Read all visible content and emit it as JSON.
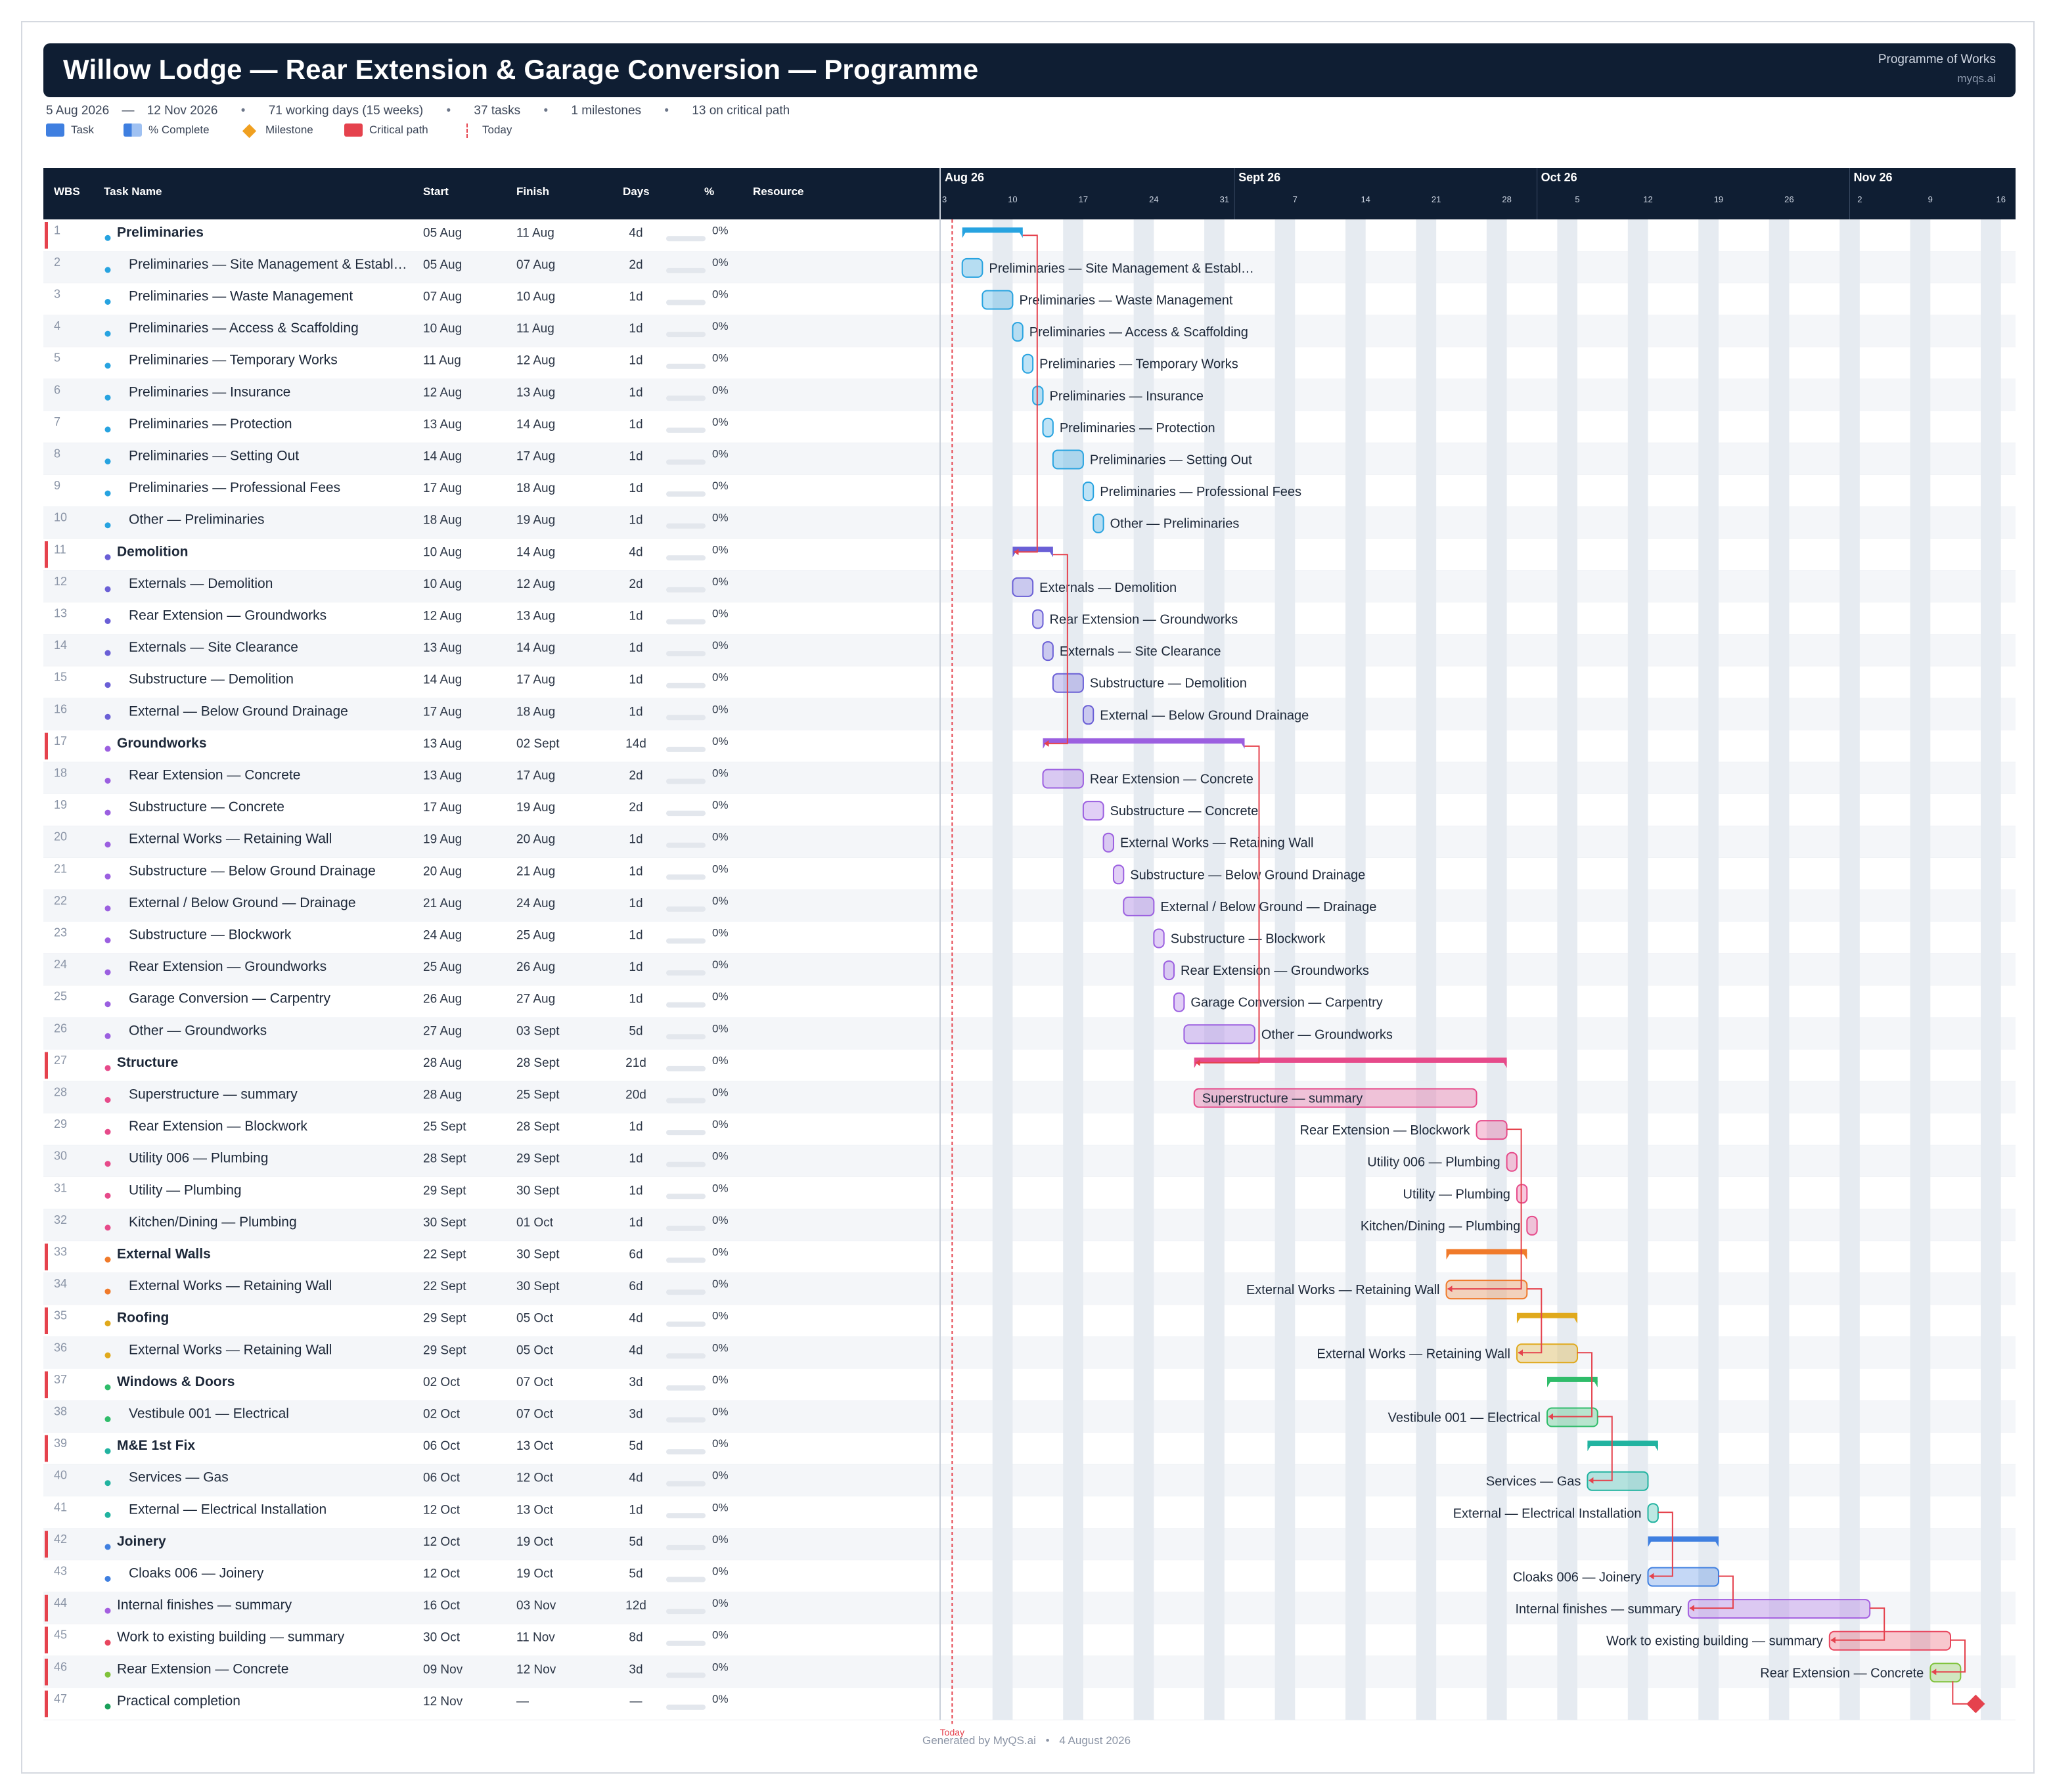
{
  "header": {
    "title": "Willow Lodge — Rear Extension & Garage Conversion — Programme",
    "right_title": "Programme of Works",
    "right_sub": "myqs.ai"
  },
  "stats": {
    "start": "5 Aug 2026",
    "dash": "—",
    "finish": "12 Nov 2026",
    "working_days": "71 working days (15 weeks)",
    "tasks": "37 tasks",
    "milestones": "1 milestones",
    "critical": "13 on critical path"
  },
  "legend": {
    "task": "Task",
    "complete": "% Complete",
    "milestone": "Milestone",
    "critical": "Critical path",
    "today": "Today"
  },
  "columns": {
    "wbs": "WBS",
    "name": "Task Name",
    "start": "Start",
    "finish": "Finish",
    "days": "Days",
    "pct": "%",
    "resource": "Resource"
  },
  "timeline": {
    "months": [
      "Aug 26",
      "Sept 26",
      "Oct 26",
      "Nov 26"
    ],
    "week_ticks": [
      "3",
      "10",
      "17",
      "24",
      "31",
      "7",
      "14",
      "21",
      "28",
      "5",
      "12",
      "19",
      "26",
      "2",
      "9",
      "16"
    ],
    "today_label": "Today",
    "today": "2026-08-04"
  },
  "colors": {
    "header_bg": "#0f1e33",
    "critical": "#e5424d",
    "milestone": "#e5424d",
    "today_line": "#e5424d",
    "weekend": "#e6ebf1"
  },
  "chart_data": {
    "type": "gantt",
    "x_unit": "date",
    "xlim": [
      "2026-08-03",
      "2026-11-17"
    ],
    "groups": {
      "prelim": "#27a3e0",
      "demo": "#6a5fd6",
      "ground": "#9b5fe0",
      "struct": "#e64a8a",
      "walls": "#f07a2a",
      "roof": "#e0a91c",
      "windows": "#2fbc6a",
      "me": "#21b3a0",
      "joinery": "#3f7fe0",
      "internal": "#a45fe0",
      "existing": "#e8455e",
      "rear": "#7fc23a",
      "complete": "#1aa05a"
    },
    "tasks": [
      {
        "wbs": "1",
        "name": "Preliminaries",
        "start_label": "05 Aug",
        "finish_label": "11 Aug",
        "days": "4d",
        "pct": "0%",
        "s": "2026-08-05",
        "f": "2026-08-11",
        "type": "summary",
        "group": "prelim",
        "crit": true,
        "label": "right"
      },
      {
        "wbs": "2",
        "name": "Preliminaries — Site Management & Establ…",
        "start_label": "05 Aug",
        "finish_label": "07 Aug",
        "days": "2d",
        "pct": "0%",
        "s": "2026-08-05",
        "f": "2026-08-07",
        "type": "task",
        "group": "prelim",
        "crit": false,
        "label": "right"
      },
      {
        "wbs": "3",
        "name": "Preliminaries — Waste Management",
        "start_label": "07 Aug",
        "finish_label": "10 Aug",
        "days": "1d",
        "pct": "0%",
        "s": "2026-08-07",
        "f": "2026-08-10",
        "type": "task",
        "group": "prelim",
        "crit": false,
        "label": "right"
      },
      {
        "wbs": "4",
        "name": "Preliminaries — Access & Scaffolding",
        "start_label": "10 Aug",
        "finish_label": "11 Aug",
        "days": "1d",
        "pct": "0%",
        "s": "2026-08-10",
        "f": "2026-08-11",
        "type": "task",
        "group": "prelim",
        "crit": false,
        "label": "right"
      },
      {
        "wbs": "5",
        "name": "Preliminaries — Temporary Works",
        "start_label": "11 Aug",
        "finish_label": "12 Aug",
        "days": "1d",
        "pct": "0%",
        "s": "2026-08-11",
        "f": "2026-08-12",
        "type": "task",
        "group": "prelim",
        "crit": false,
        "label": "right"
      },
      {
        "wbs": "6",
        "name": "Preliminaries — Insurance",
        "start_label": "12 Aug",
        "finish_label": "13 Aug",
        "days": "1d",
        "pct": "0%",
        "s": "2026-08-12",
        "f": "2026-08-13",
        "type": "task",
        "group": "prelim",
        "crit": false,
        "label": "right"
      },
      {
        "wbs": "7",
        "name": "Preliminaries — Protection",
        "start_label": "13 Aug",
        "finish_label": "14 Aug",
        "days": "1d",
        "pct": "0%",
        "s": "2026-08-13",
        "f": "2026-08-14",
        "type": "task",
        "group": "prelim",
        "crit": false,
        "label": "right"
      },
      {
        "wbs": "8",
        "name": "Preliminaries — Setting Out",
        "start_label": "14 Aug",
        "finish_label": "17 Aug",
        "days": "1d",
        "pct": "0%",
        "s": "2026-08-14",
        "f": "2026-08-17",
        "type": "task",
        "group": "prelim",
        "crit": false,
        "label": "right"
      },
      {
        "wbs": "9",
        "name": "Preliminaries — Professional Fees",
        "start_label": "17 Aug",
        "finish_label": "18 Aug",
        "days": "1d",
        "pct": "0%",
        "s": "2026-08-17",
        "f": "2026-08-18",
        "type": "task",
        "group": "prelim",
        "crit": false,
        "label": "right"
      },
      {
        "wbs": "10",
        "name": "Other — Preliminaries",
        "start_label": "18 Aug",
        "finish_label": "19 Aug",
        "days": "1d",
        "pct": "0%",
        "s": "2026-08-18",
        "f": "2026-08-19",
        "type": "task",
        "group": "prelim",
        "crit": false,
        "label": "right"
      },
      {
        "wbs": "11",
        "name": "Demolition",
        "start_label": "10 Aug",
        "finish_label": "14 Aug",
        "days": "4d",
        "pct": "0%",
        "s": "2026-08-10",
        "f": "2026-08-14",
        "type": "summary",
        "group": "demo",
        "crit": true,
        "label": "right"
      },
      {
        "wbs": "12",
        "name": "Externals — Demolition",
        "start_label": "10 Aug",
        "finish_label": "12 Aug",
        "days": "2d",
        "pct": "0%",
        "s": "2026-08-10",
        "f": "2026-08-12",
        "type": "task",
        "group": "demo",
        "crit": false,
        "label": "right"
      },
      {
        "wbs": "13",
        "name": "Rear Extension — Groundworks",
        "start_label": "12 Aug",
        "finish_label": "13 Aug",
        "days": "1d",
        "pct": "0%",
        "s": "2026-08-12",
        "f": "2026-08-13",
        "type": "task",
        "group": "demo",
        "crit": false,
        "label": "right"
      },
      {
        "wbs": "14",
        "name": "Externals — Site Clearance",
        "start_label": "13 Aug",
        "finish_label": "14 Aug",
        "days": "1d",
        "pct": "0%",
        "s": "2026-08-13",
        "f": "2026-08-14",
        "type": "task",
        "group": "demo",
        "crit": false,
        "label": "right"
      },
      {
        "wbs": "15",
        "name": "Substructure — Demolition",
        "start_label": "14 Aug",
        "finish_label": "17 Aug",
        "days": "1d",
        "pct": "0%",
        "s": "2026-08-14",
        "f": "2026-08-17",
        "type": "task",
        "group": "demo",
        "crit": false,
        "label": "right"
      },
      {
        "wbs": "16",
        "name": "External — Below Ground Drainage",
        "start_label": "17 Aug",
        "finish_label": "18 Aug",
        "days": "1d",
        "pct": "0%",
        "s": "2026-08-17",
        "f": "2026-08-18",
        "type": "task",
        "group": "demo",
        "crit": false,
        "label": "right"
      },
      {
        "wbs": "17",
        "name": "Groundworks",
        "start_label": "13 Aug",
        "finish_label": "02 Sept",
        "days": "14d",
        "pct": "0%",
        "s": "2026-08-13",
        "f": "2026-09-02",
        "type": "summary",
        "group": "ground",
        "crit": true,
        "label": "right"
      },
      {
        "wbs": "18",
        "name": "Rear Extension — Concrete",
        "start_label": "13 Aug",
        "finish_label": "17 Aug",
        "days": "2d",
        "pct": "0%",
        "s": "2026-08-13",
        "f": "2026-08-17",
        "type": "task",
        "group": "ground",
        "crit": false,
        "label": "right"
      },
      {
        "wbs": "19",
        "name": "Substructure — Concrete",
        "start_label": "17 Aug",
        "finish_label": "19 Aug",
        "days": "2d",
        "pct": "0%",
        "s": "2026-08-17",
        "f": "2026-08-19",
        "type": "task",
        "group": "ground",
        "crit": false,
        "label": "right"
      },
      {
        "wbs": "20",
        "name": "External Works — Retaining Wall",
        "start_label": "19 Aug",
        "finish_label": "20 Aug",
        "days": "1d",
        "pct": "0%",
        "s": "2026-08-19",
        "f": "2026-08-20",
        "type": "task",
        "group": "ground",
        "crit": false,
        "label": "right"
      },
      {
        "wbs": "21",
        "name": "Substructure — Below Ground Drainage",
        "start_label": "20 Aug",
        "finish_label": "21 Aug",
        "days": "1d",
        "pct": "0%",
        "s": "2026-08-20",
        "f": "2026-08-21",
        "type": "task",
        "group": "ground",
        "crit": false,
        "label": "right"
      },
      {
        "wbs": "22",
        "name": "External / Below Ground — Drainage",
        "start_label": "21 Aug",
        "finish_label": "24 Aug",
        "days": "1d",
        "pct": "0%",
        "s": "2026-08-21",
        "f": "2026-08-24",
        "type": "task",
        "group": "ground",
        "crit": false,
        "label": "right"
      },
      {
        "wbs": "23",
        "name": "Substructure — Blockwork",
        "start_label": "24 Aug",
        "finish_label": "25 Aug",
        "days": "1d",
        "pct": "0%",
        "s": "2026-08-24",
        "f": "2026-08-25",
        "type": "task",
        "group": "ground",
        "crit": false,
        "label": "right"
      },
      {
        "wbs": "24",
        "name": "Rear Extension — Groundworks",
        "start_label": "25 Aug",
        "finish_label": "26 Aug",
        "days": "1d",
        "pct": "0%",
        "s": "2026-08-25",
        "f": "2026-08-26",
        "type": "task",
        "group": "ground",
        "crit": false,
        "label": "right"
      },
      {
        "wbs": "25",
        "name": "Garage Conversion — Carpentry",
        "start_label": "26 Aug",
        "finish_label": "27 Aug",
        "days": "1d",
        "pct": "0%",
        "s": "2026-08-26",
        "f": "2026-08-27",
        "type": "task",
        "group": "ground",
        "crit": false,
        "label": "right"
      },
      {
        "wbs": "26",
        "name": "Other — Groundworks",
        "start_label": "27 Aug",
        "finish_label": "03 Sept",
        "days": "5d",
        "pct": "0%",
        "s": "2026-08-27",
        "f": "2026-09-03",
        "type": "task",
        "group": "ground",
        "crit": false,
        "label": "right"
      },
      {
        "wbs": "27",
        "name": "Structure",
        "start_label": "28 Aug",
        "finish_label": "28 Sept",
        "days": "21d",
        "pct": "0%",
        "s": "2026-08-28",
        "f": "2026-09-28",
        "type": "summary",
        "group": "struct",
        "crit": true,
        "label": "right"
      },
      {
        "wbs": "28",
        "name": "Superstructure — summary",
        "start_label": "28 Aug",
        "finish_label": "25 Sept",
        "days": "20d",
        "pct": "0%",
        "s": "2026-08-28",
        "f": "2026-09-25",
        "type": "task",
        "group": "struct",
        "crit": false,
        "label": "inside"
      },
      {
        "wbs": "29",
        "name": "Rear Extension — Blockwork",
        "start_label": "25 Sept",
        "finish_label": "28 Sept",
        "days": "1d",
        "pct": "0%",
        "s": "2026-09-25",
        "f": "2026-09-28",
        "type": "task",
        "group": "struct",
        "crit": false,
        "label": "left"
      },
      {
        "wbs": "30",
        "name": "Utility 006 — Plumbing",
        "start_label": "28 Sept",
        "finish_label": "29 Sept",
        "days": "1d",
        "pct": "0%",
        "s": "2026-09-28",
        "f": "2026-09-29",
        "type": "task",
        "group": "struct",
        "crit": false,
        "label": "left"
      },
      {
        "wbs": "31",
        "name": "Utility — Plumbing",
        "start_label": "29 Sept",
        "finish_label": "30 Sept",
        "days": "1d",
        "pct": "0%",
        "s": "2026-09-29",
        "f": "2026-09-30",
        "type": "task",
        "group": "struct",
        "crit": false,
        "label": "left"
      },
      {
        "wbs": "32",
        "name": "Kitchen/Dining — Plumbing",
        "start_label": "30 Sept",
        "finish_label": "01 Oct",
        "days": "1d",
        "pct": "0%",
        "s": "2026-09-30",
        "f": "2026-10-01",
        "type": "task",
        "group": "struct",
        "crit": false,
        "label": "left"
      },
      {
        "wbs": "33",
        "name": "External Walls",
        "start_label": "22 Sept",
        "finish_label": "30 Sept",
        "days": "6d",
        "pct": "0%",
        "s": "2026-09-22",
        "f": "2026-09-30",
        "type": "summary",
        "group": "walls",
        "crit": true,
        "label": "none"
      },
      {
        "wbs": "34",
        "name": "External Works — Retaining Wall",
        "start_label": "22 Sept",
        "finish_label": "30 Sept",
        "days": "6d",
        "pct": "0%",
        "s": "2026-09-22",
        "f": "2026-09-30",
        "type": "task",
        "group": "walls",
        "crit": false,
        "label": "left"
      },
      {
        "wbs": "35",
        "name": "Roofing",
        "start_label": "29 Sept",
        "finish_label": "05 Oct",
        "days": "4d",
        "pct": "0%",
        "s": "2026-09-29",
        "f": "2026-10-05",
        "type": "summary",
        "group": "roof",
        "crit": true,
        "label": "none"
      },
      {
        "wbs": "36",
        "name": "External Works — Retaining Wall",
        "start_label": "29 Sept",
        "finish_label": "05 Oct",
        "days": "4d",
        "pct": "0%",
        "s": "2026-09-29",
        "f": "2026-10-05",
        "type": "task",
        "group": "roof",
        "crit": false,
        "label": "left"
      },
      {
        "wbs": "37",
        "name": "Windows & Doors",
        "start_label": "02 Oct",
        "finish_label": "07 Oct",
        "days": "3d",
        "pct": "0%",
        "s": "2026-10-02",
        "f": "2026-10-07",
        "type": "summary",
        "group": "windows",
        "crit": true,
        "label": "none"
      },
      {
        "wbs": "38",
        "name": "Vestibule 001 — Electrical",
        "start_label": "02 Oct",
        "finish_label": "07 Oct",
        "days": "3d",
        "pct": "0%",
        "s": "2026-10-02",
        "f": "2026-10-07",
        "type": "task",
        "group": "windows",
        "crit": false,
        "label": "left"
      },
      {
        "wbs": "39",
        "name": "M&E 1st Fix",
        "start_label": "06 Oct",
        "finish_label": "13 Oct",
        "days": "5d",
        "pct": "0%",
        "s": "2026-10-06",
        "f": "2026-10-13",
        "type": "summary",
        "group": "me",
        "crit": true,
        "label": "none"
      },
      {
        "wbs": "40",
        "name": "Services — Gas",
        "start_label": "06 Oct",
        "finish_label": "12 Oct",
        "days": "4d",
        "pct": "0%",
        "s": "2026-10-06",
        "f": "2026-10-12",
        "type": "task",
        "group": "me",
        "crit": false,
        "label": "left"
      },
      {
        "wbs": "41",
        "name": "External — Electrical Installation",
        "start_label": "12 Oct",
        "finish_label": "13 Oct",
        "days": "1d",
        "pct": "0%",
        "s": "2026-10-12",
        "f": "2026-10-13",
        "type": "task",
        "group": "me",
        "crit": false,
        "label": "left"
      },
      {
        "wbs": "42",
        "name": "Joinery",
        "start_label": "12 Oct",
        "finish_label": "19 Oct",
        "days": "5d",
        "pct": "0%",
        "s": "2026-10-12",
        "f": "2026-10-19",
        "type": "summary",
        "group": "joinery",
        "crit": true,
        "label": "none"
      },
      {
        "wbs": "43",
        "name": "Cloaks 006 — Joinery",
        "start_label": "12 Oct",
        "finish_label": "19 Oct",
        "days": "5d",
        "pct": "0%",
        "s": "2026-10-12",
        "f": "2026-10-19",
        "type": "task",
        "group": "joinery",
        "crit": false,
        "label": "left"
      },
      {
        "wbs": "44",
        "name": "Internal finishes — summary",
        "start_label": "16 Oct",
        "finish_label": "03 Nov",
        "days": "12d",
        "pct": "0%",
        "s": "2026-10-16",
        "f": "2026-11-03",
        "type": "task",
        "group": "internal",
        "crit": true,
        "label": "left"
      },
      {
        "wbs": "45",
        "name": "Work to existing building — summary",
        "start_label": "30 Oct",
        "finish_label": "11 Nov",
        "days": "8d",
        "pct": "0%",
        "s": "2026-10-30",
        "f": "2026-11-11",
        "type": "task",
        "group": "existing",
        "crit": true,
        "label": "left"
      },
      {
        "wbs": "46",
        "name": "Rear Extension — Concrete",
        "start_label": "09 Nov",
        "finish_label": "12 Nov",
        "days": "3d",
        "pct": "0%",
        "s": "2026-11-09",
        "f": "2026-11-12",
        "type": "task",
        "group": "rear",
        "crit": true,
        "label": "left"
      },
      {
        "wbs": "47",
        "name": "Practical completion",
        "start_label": "12 Nov",
        "finish_label": "—",
        "days": "—",
        "pct": "0%",
        "s": "2026-11-12",
        "f": "2026-11-12",
        "type": "milestone",
        "group": "complete",
        "crit": true,
        "label": "none"
      }
    ],
    "dependencies": [
      [
        "1",
        "11"
      ],
      [
        "11",
        "17"
      ],
      [
        "17",
        "27"
      ],
      [
        "29",
        "34"
      ],
      [
        "34",
        "36"
      ],
      [
        "36",
        "38"
      ],
      [
        "38",
        "40"
      ],
      [
        "41",
        "43"
      ],
      [
        "43",
        "44"
      ],
      [
        "44",
        "45"
      ],
      [
        "45",
        "46"
      ],
      [
        "46",
        "47"
      ]
    ]
  },
  "footer": {
    "text": "Generated by MyQS.ai",
    "dot": "•",
    "date": "4 August 2026"
  }
}
